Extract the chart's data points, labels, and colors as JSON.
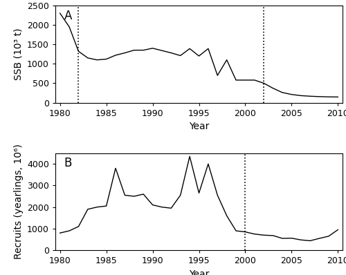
{
  "ssb_years": [
    1980,
    1981,
    1982,
    1983,
    1984,
    1985,
    1986,
    1987,
    1988,
    1989,
    1990,
    1991,
    1992,
    1993,
    1994,
    1995,
    1996,
    1997,
    1998,
    1999,
    2000,
    2001,
    2002,
    2003,
    2004,
    2005,
    2006,
    2007,
    2008,
    2009,
    2010
  ],
  "ssb_values": [
    2300,
    1950,
    1320,
    1150,
    1100,
    1120,
    1220,
    1280,
    1350,
    1350,
    1400,
    1340,
    1280,
    1210,
    1390,
    1200,
    1390,
    700,
    1100,
    580,
    580,
    580,
    500,
    370,
    260,
    210,
    180,
    165,
    155,
    148,
    145
  ],
  "rec_years": [
    1980,
    1981,
    1982,
    1983,
    1984,
    1985,
    1986,
    1987,
    1988,
    1989,
    1990,
    1991,
    1992,
    1993,
    1994,
    1995,
    1996,
    1997,
    1998,
    1999,
    2000,
    2001,
    2002,
    2003,
    2004,
    2005,
    2006,
    2007,
    2008,
    2009,
    2010
  ],
  "rec_values": [
    800,
    900,
    1100,
    1900,
    2000,
    2050,
    3800,
    2550,
    2500,
    2600,
    2100,
    2000,
    1950,
    2550,
    4350,
    2650,
    4000,
    2550,
    1600,
    900,
    850,
    750,
    700,
    680,
    550,
    560,
    480,
    440,
    550,
    650,
    950
  ],
  "ssb_vline1": 1982,
  "ssb_vline2": 2002,
  "rec_vline1": 2000,
  "ssb_ylim": [
    0,
    2500
  ],
  "ssb_yticks": [
    0,
    500,
    1000,
    1500,
    2000,
    2500
  ],
  "rec_ylim": [
    0,
    4500
  ],
  "rec_yticks": [
    0,
    1000,
    2000,
    3000,
    4000
  ],
  "xlim": [
    1979.5,
    2010.5
  ],
  "xticks": [
    1980,
    1985,
    1990,
    1995,
    2000,
    2005,
    2010
  ],
  "ssb_ylabel": "SSB (10³ t)",
  "rec_ylabel": "Recruits (yearlings, 10⁶)",
  "xlabel": "Year",
  "label_A": "A",
  "label_B": "B",
  "line_color": "#000000",
  "vline_color": "#000000",
  "bg_color": "#ffffff",
  "fontsize_tick": 9,
  "fontsize_label": 10,
  "fontsize_panel": 12
}
